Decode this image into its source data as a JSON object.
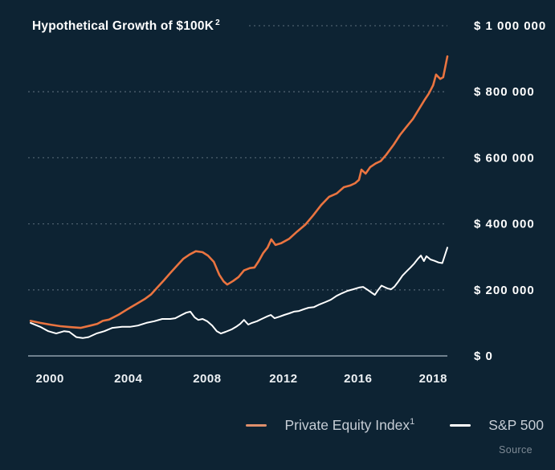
{
  "title": {
    "text": "Hypothetical Growth of $100K",
    "superscript": "2"
  },
  "legend": [
    {
      "label": "Private Equity Index",
      "superscript": "1",
      "swatch_color": "#de8f6c"
    },
    {
      "label": "S&P 500",
      "superscript": "",
      "swatch_color": "#ffffff"
    }
  ],
  "source_label": "Source",
  "colors": {
    "background": "#0d2333",
    "pe_line": "#ea7440",
    "sp500_line": "#ffffff",
    "gridline": "#4d5f6d",
    "axis_line": "#90a0ac",
    "legend_text": "#c6cdd5",
    "source_text": "#7e8a95"
  },
  "chart_data": {
    "type": "line",
    "title": "Hypothetical Growth of $100K",
    "xlabel": "",
    "ylabel": "",
    "grid": "dotted horizontal gridlines",
    "legend_position": "bottom-right",
    "x_axis": {
      "note": "time axis, fraction 0-1 across plot (~1999 to mid-2019)",
      "ticks": [
        {
          "label": "2000",
          "f": 0.052
        },
        {
          "label": "2004",
          "f": 0.239
        },
        {
          "label": "2008",
          "f": 0.427
        },
        {
          "label": "2012",
          "f": 0.609
        },
        {
          "label": "2016",
          "f": 0.787
        },
        {
          "label": "2018",
          "f": 0.966
        }
      ]
    },
    "y_axis": {
      "min": 0,
      "max": 1000000,
      "ticks": [
        {
          "label": "$ 1 000 000",
          "value": 1000000
        },
        {
          "label": "$ 800 000",
          "value": 800000
        },
        {
          "label": "$ 600 000",
          "value": 600000
        },
        {
          "label": "$ 400 000",
          "value": 400000
        },
        {
          "label": "$ 200 000",
          "value": 200000
        },
        {
          "label": "$ 0",
          "value": 0
        }
      ]
    },
    "series": [
      {
        "name": "Private Equity Index",
        "color": "#ea7440",
        "stroke_width": 2.6,
        "points": [
          [
            0.006,
            106000
          ],
          [
            0.029,
            100000
          ],
          [
            0.052,
            95000
          ],
          [
            0.077,
            90000
          ],
          [
            0.102,
            87000
          ],
          [
            0.125,
            85000
          ],
          [
            0.149,
            92000
          ],
          [
            0.165,
            97000
          ],
          [
            0.178,
            106000
          ],
          [
            0.193,
            110000
          ],
          [
            0.216,
            125000
          ],
          [
            0.239,
            143000
          ],
          [
            0.259,
            158000
          ],
          [
            0.278,
            172000
          ],
          [
            0.293,
            186000
          ],
          [
            0.308,
            207000
          ],
          [
            0.324,
            229000
          ],
          [
            0.339,
            251000
          ],
          [
            0.354,
            272000
          ],
          [
            0.37,
            294000
          ],
          [
            0.385,
            307000
          ],
          [
            0.4,
            317000
          ],
          [
            0.416,
            314000
          ],
          [
            0.429,
            304000
          ],
          [
            0.443,
            285000
          ],
          [
            0.456,
            246000
          ],
          [
            0.466,
            226000
          ],
          [
            0.475,
            216000
          ],
          [
            0.489,
            227000
          ],
          [
            0.502,
            239000
          ],
          [
            0.515,
            259000
          ],
          [
            0.529,
            266000
          ],
          [
            0.54,
            268000
          ],
          [
            0.55,
            287000
          ],
          [
            0.561,
            312000
          ],
          [
            0.571,
            328000
          ],
          [
            0.58,
            353000
          ],
          [
            0.59,
            336000
          ],
          [
            0.603,
            341000
          ],
          [
            0.623,
            355000
          ],
          [
            0.642,
            377000
          ],
          [
            0.661,
            397000
          ],
          [
            0.68,
            426000
          ],
          [
            0.699,
            457000
          ],
          [
            0.718,
            482000
          ],
          [
            0.736,
            492000
          ],
          [
            0.753,
            511000
          ],
          [
            0.768,
            516000
          ],
          [
            0.78,
            523000
          ],
          [
            0.789,
            533000
          ],
          [
            0.795,
            564000
          ],
          [
            0.805,
            552000
          ],
          [
            0.816,
            572000
          ],
          [
            0.829,
            583000
          ],
          [
            0.841,
            590000
          ],
          [
            0.854,
            609000
          ],
          [
            0.872,
            640000
          ],
          [
            0.887,
            669000
          ],
          [
            0.902,
            693000
          ],
          [
            0.918,
            718000
          ],
          [
            0.933,
            749000
          ],
          [
            0.946,
            776000
          ],
          [
            0.956,
            795000
          ],
          [
            0.966,
            820000
          ],
          [
            0.973,
            852000
          ],
          [
            0.983,
            839000
          ],
          [
            0.99,
            844000
          ],
          [
            1.0,
            907000
          ]
        ]
      },
      {
        "name": "S&P 500",
        "color": "#ffffff",
        "stroke_width": 2,
        "points": [
          [
            0.006,
            100000
          ],
          [
            0.029,
            88000
          ],
          [
            0.048,
            75000
          ],
          [
            0.067,
            68000
          ],
          [
            0.086,
            75000
          ],
          [
            0.098,
            73000
          ],
          [
            0.115,
            57000
          ],
          [
            0.13,
            54000
          ],
          [
            0.144,
            57000
          ],
          [
            0.163,
            68000
          ],
          [
            0.182,
            75000
          ],
          [
            0.201,
            85000
          ],
          [
            0.224,
            88000
          ],
          [
            0.243,
            88000
          ],
          [
            0.262,
            92000
          ],
          [
            0.282,
            100000
          ],
          [
            0.301,
            105000
          ],
          [
            0.32,
            112000
          ],
          [
            0.339,
            112000
          ],
          [
            0.351,
            114000
          ],
          [
            0.366,
            124000
          ],
          [
            0.377,
            131000
          ],
          [
            0.387,
            134000
          ],
          [
            0.397,
            117000
          ],
          [
            0.406,
            109000
          ],
          [
            0.416,
            112000
          ],
          [
            0.427,
            105000
          ],
          [
            0.439,
            92000
          ],
          [
            0.45,
            75000
          ],
          [
            0.46,
            68000
          ],
          [
            0.471,
            73000
          ],
          [
            0.485,
            80000
          ],
          [
            0.496,
            88000
          ],
          [
            0.506,
            97000
          ],
          [
            0.515,
            109000
          ],
          [
            0.525,
            95000
          ],
          [
            0.534,
            100000
          ],
          [
            0.546,
            105000
          ],
          [
            0.557,
            112000
          ],
          [
            0.569,
            119000
          ],
          [
            0.579,
            124000
          ],
          [
            0.588,
            114000
          ],
          [
            0.6,
            119000
          ],
          [
            0.611,
            124000
          ],
          [
            0.623,
            129000
          ],
          [
            0.634,
            134000
          ],
          [
            0.646,
            136000
          ],
          [
            0.657,
            141000
          ],
          [
            0.669,
            146000
          ],
          [
            0.682,
            148000
          ],
          [
            0.695,
            156000
          ],
          [
            0.709,
            163000
          ],
          [
            0.722,
            170000
          ],
          [
            0.736,
            182000
          ],
          [
            0.749,
            190000
          ],
          [
            0.762,
            197000
          ],
          [
            0.776,
            202000
          ],
          [
            0.789,
            207000
          ],
          [
            0.799,
            209000
          ],
          [
            0.81,
            200000
          ],
          [
            0.82,
            191000
          ],
          [
            0.827,
            185000
          ],
          [
            0.835,
            200000
          ],
          [
            0.843,
            213000
          ],
          [
            0.851,
            208000
          ],
          [
            0.858,
            204000
          ],
          [
            0.866,
            202000
          ],
          [
            0.874,
            210000
          ],
          [
            0.883,
            225000
          ],
          [
            0.893,
            243000
          ],
          [
            0.902,
            255000
          ],
          [
            0.912,
            268000
          ],
          [
            0.921,
            280000
          ],
          [
            0.929,
            293000
          ],
          [
            0.937,
            304000
          ],
          [
            0.944,
            287000
          ],
          [
            0.95,
            302000
          ],
          [
            0.96,
            292000
          ],
          [
            0.969,
            288000
          ],
          [
            0.979,
            283000
          ],
          [
            0.988,
            281000
          ],
          [
            1.0,
            328000
          ]
        ]
      }
    ]
  }
}
